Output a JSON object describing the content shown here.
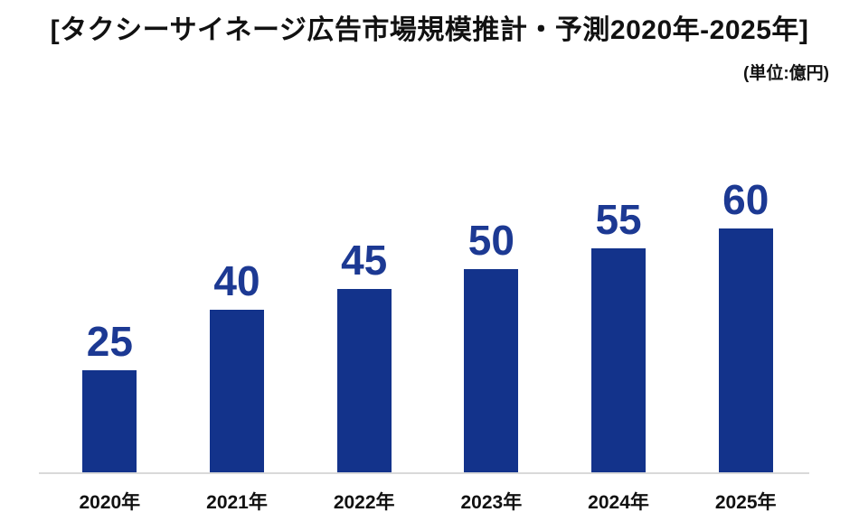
{
  "header": {
    "title": "[タクシーサイネージ広告市場規模推計・予測2020年-2025年]",
    "unit_note": "(単位:億円)"
  },
  "colors": {
    "bar": "#13338b",
    "value_label": "#1c3993",
    "axis_line": "#d9d9d9",
    "text": "#111111"
  },
  "chart_data": {
    "type": "bar",
    "title": "タクシーサイネージ広告市場規模推計・予測2020年-2025年",
    "unit": "億円",
    "categories": [
      "2020年",
      "2021年",
      "2022年",
      "2023年",
      "2024年",
      "2025年"
    ],
    "values": [
      25,
      40,
      45,
      50,
      55,
      60
    ],
    "xlabel": "",
    "ylabel": "",
    "ylim": [
      0,
      60
    ],
    "grid": false,
    "legend": false,
    "data_labels": true,
    "bar_color": "#13338b"
  }
}
